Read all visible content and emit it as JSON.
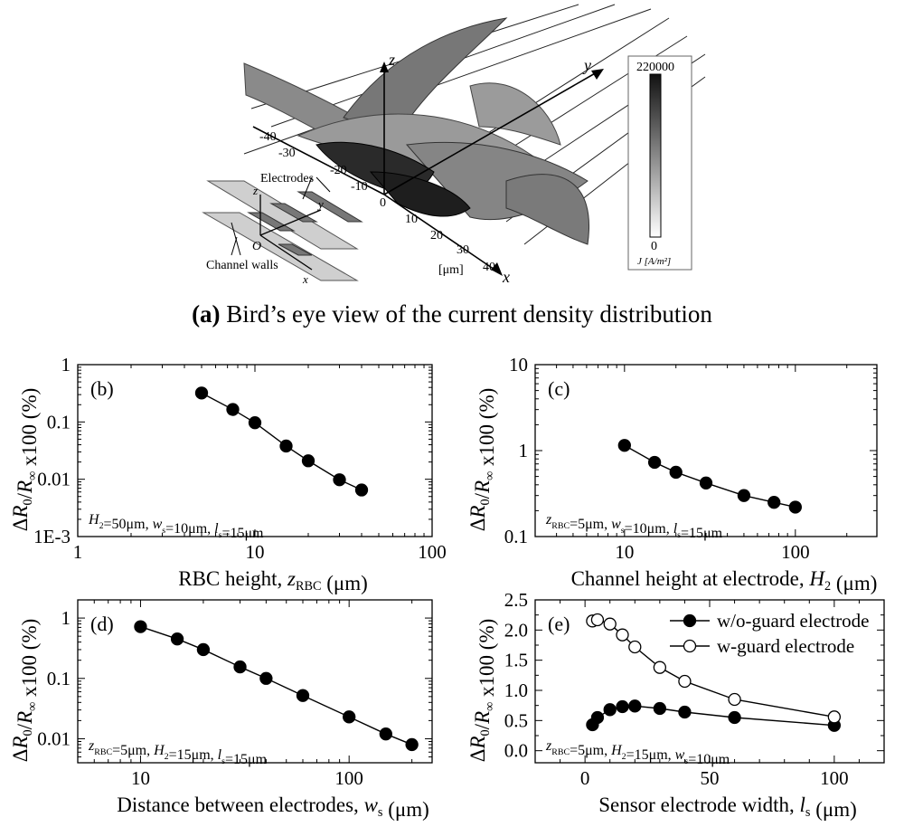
{
  "panel_a": {
    "caption_letter": "(a)",
    "caption_text": " Bird’s eye view of the current density distribution",
    "axis_z": "z",
    "axis_y": "y",
    "axis_x": "x",
    "unit_label": "[μm]",
    "x_ticks": [
      "-40",
      "-30",
      "-20",
      "-10",
      "0",
      "10",
      "20",
      "30",
      "40"
    ],
    "colorbar_max": "220000",
    "colorbar_min": "0",
    "colorbar_unit": "J [A/m²]",
    "inset_electrodes": "Electrodes",
    "inset_channel_walls": "Channel walls",
    "inset_origin": "O",
    "inset_z": "z",
    "inset_y": "y",
    "inset_x": "x"
  },
  "chart_data": [
    {
      "id": "b",
      "type": "line",
      "panel_label": "(b)",
      "xlabel": "RBC height, z_RBC (μm)",
      "ylabel": "ΔR0/R∞ x100 (%)",
      "xscale": "log",
      "yscale": "log",
      "xlim": [
        1,
        100
      ],
      "ylim": [
        0.001,
        1
      ],
      "x_ticks": [
        "1",
        "10",
        "100"
      ],
      "y_ticks": [
        "1E-3",
        "0.01",
        "0.1",
        "1"
      ],
      "annotation": "H2=50μm, ws=10μm, ls=15μm",
      "series": [
        {
          "marker": "filled",
          "x": [
            5,
            7.5,
            10,
            15,
            20,
            30,
            40
          ],
          "y": [
            0.32,
            0.165,
            0.097,
            0.038,
            0.021,
            0.0098,
            0.0065
          ]
        }
      ]
    },
    {
      "id": "c",
      "type": "line",
      "panel_label": "(c)",
      "xlabel": "Channel height at electrode, H2 (μm)",
      "ylabel": "ΔR0/R∞ x100 (%)",
      "xscale": "log",
      "yscale": "log",
      "xlim": [
        3,
        300
      ],
      "ylim": [
        0.1,
        10
      ],
      "x_ticks": [
        "10",
        "100"
      ],
      "y_ticks": [
        "0.1",
        "1",
        "10"
      ],
      "annotation": "zRBC=5μm, ws=10μm, ls=15μm",
      "series": [
        {
          "marker": "filled",
          "x": [
            10,
            15,
            20,
            30,
            50,
            75,
            100
          ],
          "y": [
            1.15,
            0.73,
            0.56,
            0.42,
            0.3,
            0.25,
            0.22
          ]
        }
      ]
    },
    {
      "id": "d",
      "type": "line",
      "panel_label": "(d)",
      "xlabel": "Distance between electrodes, ws (μm)",
      "ylabel": "ΔR0/R∞ x100 (%)",
      "xscale": "log",
      "yscale": "log",
      "xlim": [
        5,
        250
      ],
      "ylim": [
        0.004,
        2
      ],
      "x_ticks": [
        "10",
        "100"
      ],
      "y_ticks": [
        "0.01",
        "0.1",
        "1"
      ],
      "annotation": "zRBC=5μm, H2=15μm, ls=15μm",
      "series": [
        {
          "marker": "filled",
          "x": [
            10,
            15,
            20,
            30,
            40,
            60,
            100,
            150,
            200
          ],
          "y": [
            0.72,
            0.45,
            0.3,
            0.155,
            0.1,
            0.052,
            0.023,
            0.012,
            0.008
          ]
        }
      ]
    },
    {
      "id": "e",
      "type": "line",
      "panel_label": "(e)",
      "xlabel": "Sensor electrode width, ls (μm)",
      "ylabel": "ΔR0/R∞ x100 (%)",
      "xscale": "linear",
      "yscale": "linear",
      "xlim": [
        -20,
        120
      ],
      "ylim": [
        -0.2,
        2.5
      ],
      "x_ticks": [
        "0",
        "50",
        "100"
      ],
      "y_ticks": [
        "0.0",
        "0.5",
        "1.0",
        "1.5",
        "2.0",
        "2.5"
      ],
      "annotation": "zRBC=5μm, H2=15μm, ws=10μm",
      "legend_position": "top-right",
      "series": [
        {
          "name": "w/o-guard electrode",
          "marker": "filled",
          "x": [
            3,
            5,
            10,
            15,
            20,
            30,
            40,
            60,
            100
          ],
          "y": [
            0.43,
            0.55,
            0.68,
            0.73,
            0.74,
            0.7,
            0.64,
            0.55,
            0.42
          ]
        },
        {
          "name": "w-guard electrode",
          "marker": "open",
          "x": [
            3,
            5,
            10,
            15,
            20,
            30,
            40,
            60,
            100
          ],
          "y": [
            2.15,
            2.17,
            2.1,
            1.92,
            1.72,
            1.38,
            1.15,
            0.85,
            0.56
          ]
        }
      ]
    }
  ]
}
